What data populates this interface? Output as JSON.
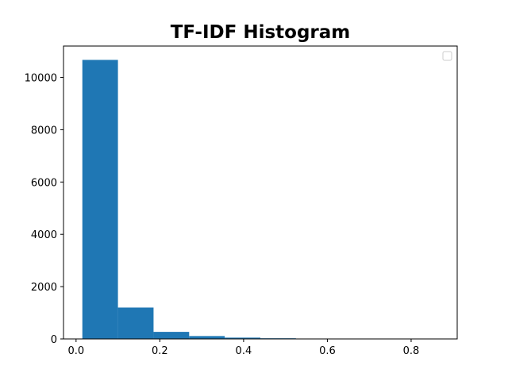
{
  "chart_data": {
    "type": "bar",
    "title": "TF-IDF Histogram",
    "xlabel": "",
    "ylabel": "",
    "xlim": [
      -0.03,
      0.91
    ],
    "ylim": [
      0,
      11200
    ],
    "xticks": [
      0.0,
      0.2,
      0.4,
      0.6,
      0.8
    ],
    "xtick_labels": [
      "0.0",
      "0.2",
      "0.4",
      "0.6",
      "0.8"
    ],
    "yticks": [
      0,
      2000,
      4000,
      6000,
      8000,
      10000
    ],
    "ytick_labels": [
      "0",
      "2000",
      "4000",
      "6000",
      "8000",
      "10000"
    ],
    "bin_edges": [
      0.015,
      0.1,
      0.185,
      0.27,
      0.355,
      0.44,
      0.525,
      0.61,
      0.695,
      0.78,
      0.865
    ],
    "values": [
      10670,
      1200,
      270,
      110,
      50,
      25,
      10,
      4,
      2,
      2
    ],
    "color": "#1f77b4",
    "grid": false,
    "legend": {
      "placement": "top-right",
      "entries": []
    }
  }
}
